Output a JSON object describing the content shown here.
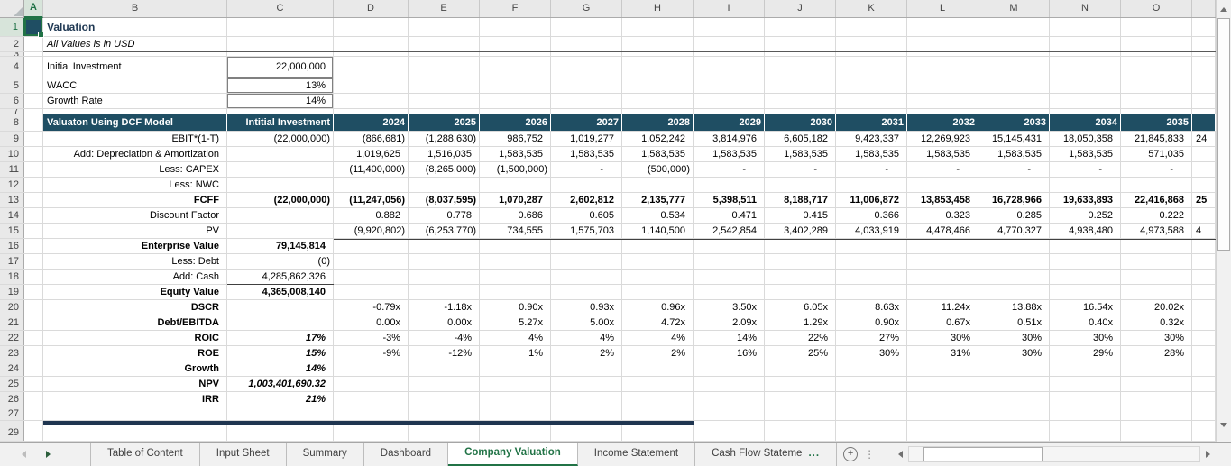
{
  "columns": [
    "A",
    "B",
    "C",
    "D",
    "E",
    "F",
    "G",
    "H",
    "I",
    "J",
    "K",
    "L",
    "M",
    "N",
    "O"
  ],
  "row_numbers": [
    "1",
    "2",
    "3",
    "4",
    "5",
    "6",
    "7",
    "8",
    "9",
    "10",
    "11",
    "12",
    "13",
    "14",
    "15",
    "16",
    "17",
    "18",
    "19",
    "20",
    "21",
    "22",
    "23",
    "24",
    "25",
    "26",
    "27",
    "",
    "29"
  ],
  "sheet": {
    "title": "Valuation",
    "subtitle": "All Values is in USD",
    "inputs": [
      {
        "label": "Initial Investment",
        "value": "22,000,000"
      },
      {
        "label": "WACC",
        "value": "13%"
      },
      {
        "label": "Growth Rate",
        "value": "14%"
      }
    ],
    "table": {
      "header_label": "Valuaton Using DCF Model",
      "header_col2": "Intitial Investment",
      "years": [
        "2024",
        "2025",
        "2026",
        "2027",
        "2028",
        "2029",
        "2030",
        "2031",
        "2032",
        "2033",
        "2034",
        "2035"
      ],
      "rows": [
        {
          "label": "EBIT*(1-T)",
          "init": "(22,000,000)",
          "bold": false,
          "clip": "24",
          "values": [
            "(866,681)",
            "(1,288,630)",
            "986,752",
            "1,019,277",
            "1,052,242",
            "3,814,976",
            "6,605,182",
            "9,423,337",
            "12,269,923",
            "15,145,431",
            "18,050,358",
            "21,845,833"
          ]
        },
        {
          "label": "Add: Depreciation & Amortization",
          "init": "",
          "bold": false,
          "clip": "",
          "values": [
            "1,019,625",
            "1,516,035",
            "1,583,535",
            "1,583,535",
            "1,583,535",
            "1,583,535",
            "1,583,535",
            "1,583,535",
            "1,583,535",
            "1,583,535",
            "1,583,535",
            "571,035"
          ]
        },
        {
          "label": "Less: CAPEX",
          "init": "",
          "bold": false,
          "clip": "",
          "values": [
            "(11,400,000)",
            "(8,265,000)",
            "(1,500,000)",
            "-",
            "(500,000)",
            "-",
            "-",
            "-",
            "-",
            "-",
            "-",
            "-"
          ]
        },
        {
          "label": "Less: NWC",
          "init": "",
          "bold": false,
          "clip": "",
          "values": [
            "",
            "",
            "",
            "",
            "",
            "",
            "",
            "",
            "",
            "",
            "",
            ""
          ]
        },
        {
          "label": "FCFF",
          "init": "(22,000,000)",
          "bold": true,
          "clip": "25",
          "values": [
            "(11,247,056)",
            "(8,037,595)",
            "1,070,287",
            "2,602,812",
            "2,135,777",
            "5,398,511",
            "8,188,717",
            "11,006,872",
            "13,853,458",
            "16,728,966",
            "19,633,893",
            "22,416,868"
          ]
        },
        {
          "label": "Discount Factor",
          "init": "",
          "bold": false,
          "clip": "",
          "values": [
            "0.882",
            "0.778",
            "0.686",
            "0.605",
            "0.534",
            "0.471",
            "0.415",
            "0.366",
            "0.323",
            "0.285",
            "0.252",
            "0.222"
          ]
        },
        {
          "label": "PV",
          "init": "",
          "bold": false,
          "clip": "4",
          "values": [
            "(9,920,802)",
            "(6,253,770)",
            "734,555",
            "1,575,703",
            "1,140,500",
            "2,542,854",
            "3,402,289",
            "4,033,919",
            "4,478,466",
            "4,770,327",
            "4,938,480",
            "4,973,588"
          ]
        }
      ]
    },
    "summary": [
      {
        "label": "Enterprise Value",
        "value": "79,145,814",
        "bold": true
      },
      {
        "label": "Less: Debt",
        "value": "(0)",
        "bold": false
      },
      {
        "label": "Add: Cash",
        "value": "4,285,862,326",
        "bold": false
      },
      {
        "label": "Equity Value",
        "value": "4,365,008,140",
        "bold": true
      }
    ],
    "metrics": [
      {
        "label": "DSCR",
        "value": "",
        "values": [
          "-0.79x",
          "-1.18x",
          "0.90x",
          "0.93x",
          "0.96x",
          "3.50x",
          "6.05x",
          "8.63x",
          "11.24x",
          "13.88x",
          "16.54x",
          "20.02x"
        ]
      },
      {
        "label": "Debt/EBITDA",
        "value": "",
        "values": [
          "0.00x",
          "0.00x",
          "5.27x",
          "5.00x",
          "4.72x",
          "2.09x",
          "1.29x",
          "0.90x",
          "0.67x",
          "0.51x",
          "0.40x",
          "0.32x"
        ]
      },
      {
        "label": "ROIC",
        "value": "17%",
        "values": [
          "-3%",
          "-4%",
          "4%",
          "4%",
          "4%",
          "14%",
          "22%",
          "27%",
          "30%",
          "30%",
          "30%",
          "30%"
        ]
      },
      {
        "label": "ROE",
        "value": "15%",
        "values": [
          "-9%",
          "-12%",
          "1%",
          "2%",
          "2%",
          "16%",
          "25%",
          "30%",
          "31%",
          "30%",
          "29%",
          "28%"
        ]
      },
      {
        "label": "Growth",
        "value": "14%",
        "values": []
      },
      {
        "label": "NPV",
        "value": "1,003,401,690.32",
        "values": []
      },
      {
        "label": "IRR",
        "value": "21%",
        "values": []
      }
    ]
  },
  "tabs": {
    "items": [
      "Table of Content",
      "Input Sheet",
      "Summary",
      "Dashboard",
      "Company Valuation",
      "Income Statement",
      "Cash Flow Stateme"
    ],
    "active_index": 4,
    "ellipsis": "..."
  },
  "colors": {
    "table_header_bg": "#1F4E63",
    "accent_green": "#217346",
    "bottom_bar": "#1F3550",
    "title_text": "#1F3853"
  }
}
